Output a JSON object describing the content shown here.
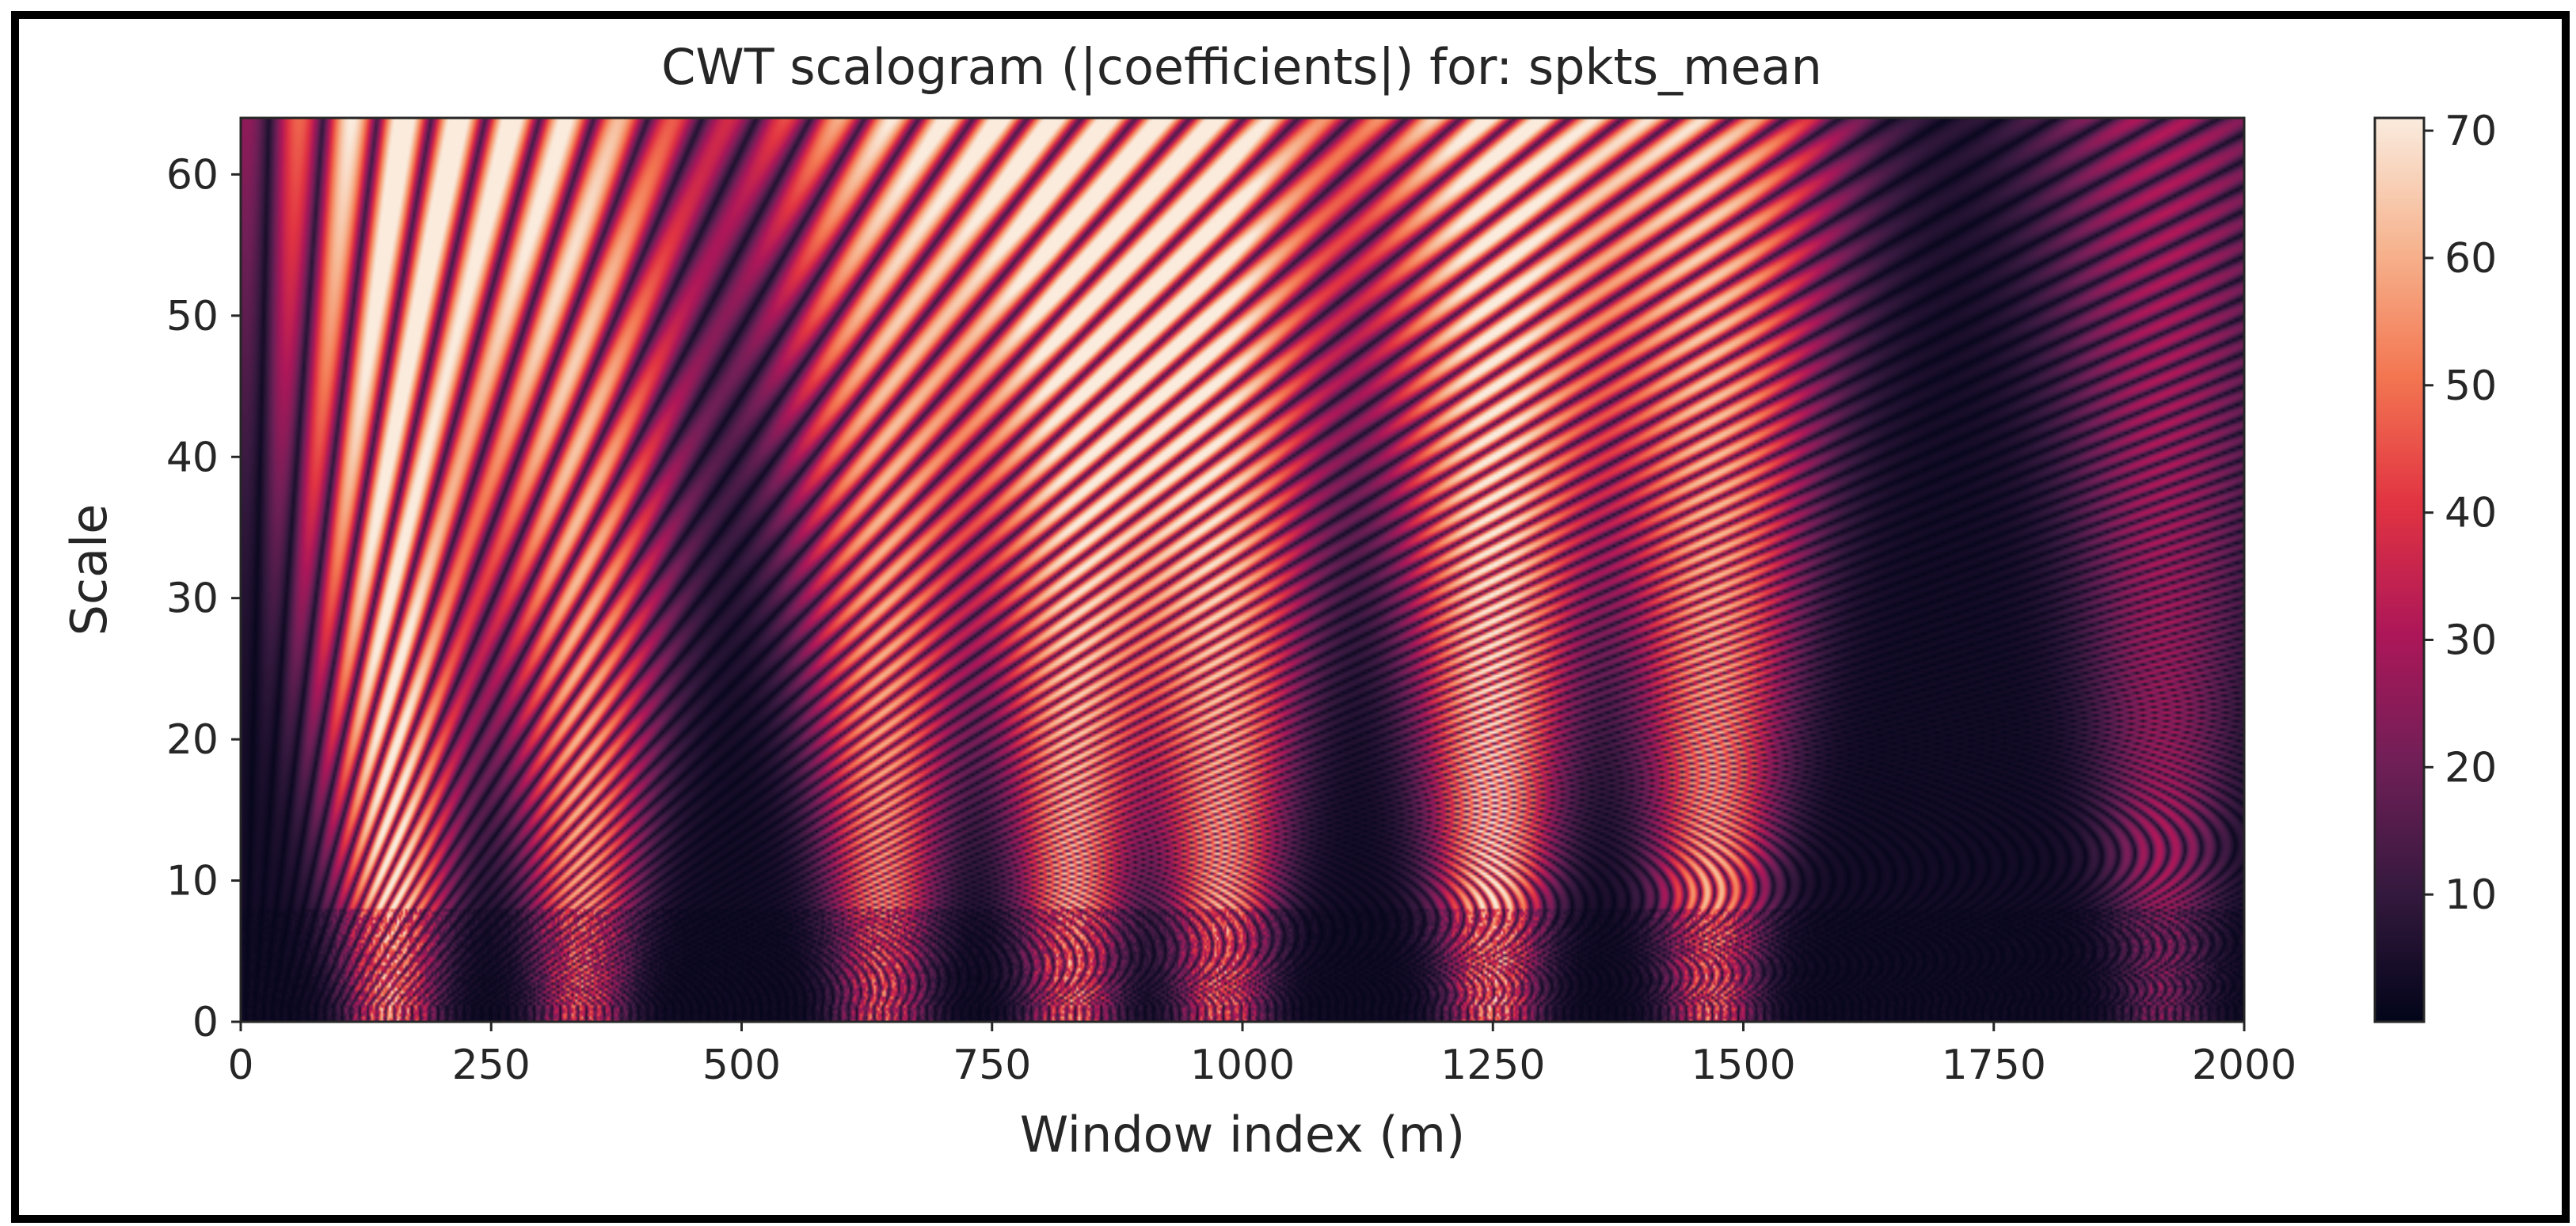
{
  "chart_data": {
    "type": "heatmap",
    "title": "CWT scalogram (|coefficients|) for: spkts_mean",
    "xlabel": "Window index (m)",
    "ylabel": "Scale",
    "xlim": [
      0,
      2000
    ],
    "ylim": [
      0,
      64
    ],
    "x_ticks": [
      0,
      250,
      500,
      750,
      1000,
      1250,
      1500,
      1750,
      2000
    ],
    "y_ticks": [
      0,
      10,
      20,
      30,
      40,
      50,
      60
    ],
    "colorbar": {
      "range": [
        0,
        71
      ],
      "ticks": [
        10,
        20,
        30,
        40,
        50,
        60,
        70
      ],
      "colormap": "rocket",
      "colors": [
        "#03051a",
        "#35193e",
        "#701f57",
        "#ad1759",
        "#e13342",
        "#f37651",
        "#f6b48f",
        "#faebdd"
      ]
    },
    "grid": false,
    "energy_bursts": [
      {
        "center_x": 150,
        "value": 71
      },
      {
        "center_x": 340,
        "value": 58
      },
      {
        "center_x": 640,
        "value": 57
      },
      {
        "center_x": 830,
        "value": 63
      },
      {
        "center_x": 980,
        "value": 62
      },
      {
        "center_x": 1250,
        "value": 70
      },
      {
        "center_x": 1470,
        "value": 60
      },
      {
        "center_x": 1920,
        "value": 28
      }
    ]
  }
}
